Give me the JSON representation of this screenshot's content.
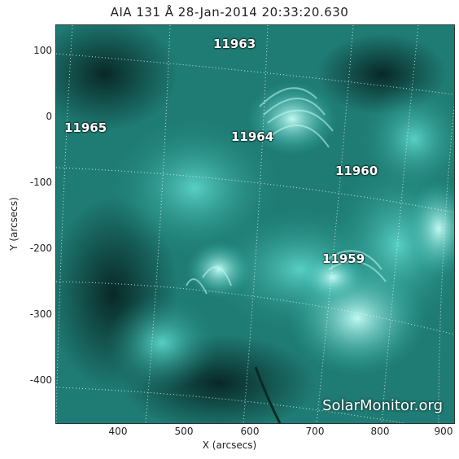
{
  "title": "AIA 131 Å 28-Jan-2014 20:33:20.630",
  "chart_data": {
    "type": "image",
    "xlabel": "X (arcsecs)",
    "ylabel": "Y (arcsecs)",
    "xlim": [
      310,
      905
    ],
    "ylim": [
      -460,
      140
    ],
    "xticks": [
      400,
      500,
      600,
      700,
      800,
      900
    ],
    "yticks": [
      100,
      0,
      -100,
      -200,
      -300,
      -400
    ],
    "regions": [
      {
        "label": "11963",
        "x": 590,
        "y": 110
      },
      {
        "label": "11965",
        "x": 345,
        "y": -15
      },
      {
        "label": "11964",
        "x": 620,
        "y": -30
      },
      {
        "label": "11960",
        "x": 770,
        "y": -85
      },
      {
        "label": "11959",
        "x": 750,
        "y": -215
      }
    ]
  },
  "watermark": "SolarMonitor.org",
  "colors": {
    "bright": "#9ff5ec",
    "mid": "#2bb6aa",
    "dark": "#0b3a36"
  }
}
